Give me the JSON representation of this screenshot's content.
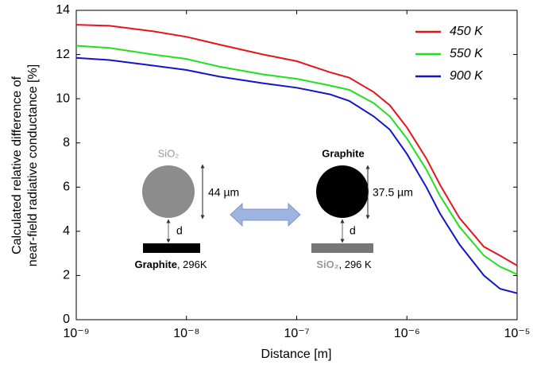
{
  "chart_data": {
    "type": "line",
    "ylabel": [
      "Calculated relative difference of",
      "near-field radiative conductance  [%]"
    ],
    "xlabel": "Distance [m]",
    "x": [
      1e-09,
      2e-09,
      5e-09,
      1e-08,
      2e-08,
      5e-08,
      1e-07,
      2e-07,
      3e-07,
      5e-07,
      7e-07,
      1e-06,
      1.5e-06,
      2e-06,
      3e-06,
      5e-06,
      7e-06,
      1e-05
    ],
    "series": [
      {
        "name": "450 K",
        "color": "#e8141c",
        "values": [
          13.35,
          13.3,
          13.05,
          12.8,
          12.45,
          12.0,
          11.7,
          11.2,
          10.95,
          10.3,
          9.7,
          8.7,
          7.3,
          6.1,
          4.6,
          3.3,
          2.9,
          2.45
        ]
      },
      {
        "name": "550 K",
        "color": "#22e01f",
        "values": [
          12.4,
          12.3,
          12.0,
          11.8,
          11.45,
          11.1,
          10.9,
          10.6,
          10.4,
          9.8,
          9.2,
          8.2,
          6.8,
          5.6,
          4.2,
          2.9,
          2.4,
          2.05
        ]
      },
      {
        "name": "900 K",
        "color": "#1414c8",
        "values": [
          11.85,
          11.75,
          11.5,
          11.3,
          11.0,
          10.7,
          10.5,
          10.2,
          9.9,
          9.2,
          8.6,
          7.5,
          6.0,
          4.8,
          3.4,
          2.0,
          1.4,
          1.2
        ]
      }
    ],
    "xscale": "log",
    "xlim": [
      1e-09,
      1e-05
    ],
    "xticks": [
      {
        "value": 1e-09,
        "label": "10⁻⁹"
      },
      {
        "value": 1e-08,
        "label": "10⁻⁸"
      },
      {
        "value": 1e-07,
        "label": "10⁻⁷"
      },
      {
        "value": 1e-06,
        "label": "10⁻⁶"
      },
      {
        "value": 1e-05,
        "label": "10⁻⁵"
      }
    ],
    "ylim": [
      0,
      14
    ],
    "yticks": [
      0,
      2,
      4,
      6,
      8,
      10,
      12,
      14
    ],
    "legend": "upper right",
    "inset": {
      "left": {
        "particle": "SiO₂",
        "size": "44 µm",
        "gap": "d",
        "substrate": "Graphite",
        "substrate_temp": ", 296K"
      },
      "right": {
        "particle": "Graphite",
        "size": "37.5 µm",
        "gap": "d",
        "substrate": "SiO₂",
        "substrate_temp": ", 296 K"
      }
    }
  }
}
